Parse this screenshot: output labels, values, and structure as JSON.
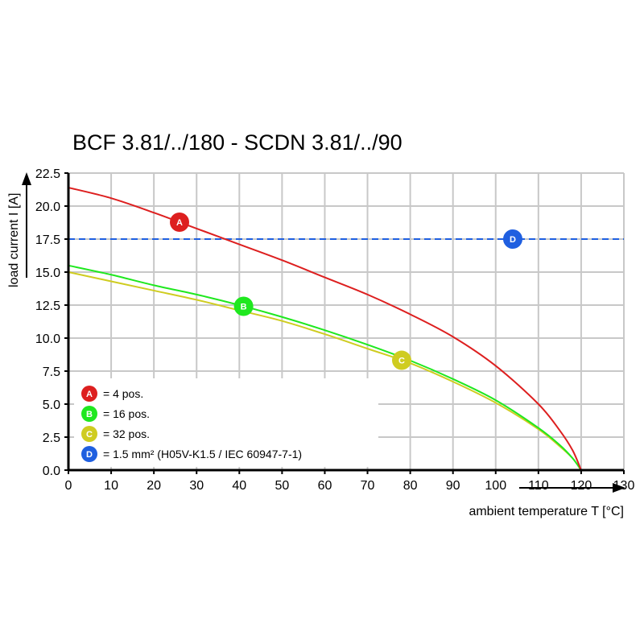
{
  "chart_data": {
    "type": "line",
    "title": "BCF 3.81/../180 - SCDN 3.81/../90",
    "xlabel": "ambient temperature T [°C]",
    "ylabel": "load current I [A]",
    "xlim": [
      0,
      130
    ],
    "ylim": [
      0,
      22.5
    ],
    "x_ticks": [
      "0",
      "10",
      "20",
      "30",
      "40",
      "50",
      "60",
      "70",
      "80",
      "90",
      "100",
      "110",
      "120",
      "130"
    ],
    "y_ticks": [
      "0.0",
      "2.5",
      "5.0",
      "7.5",
      "10.0",
      "12.5",
      "15.0",
      "17.5",
      "20.0",
      "22.5"
    ],
    "grid": true,
    "legend_position": "bottom-left",
    "series": [
      {
        "badge": "A",
        "legend": "= 4 pos.",
        "color": "#dd1f1f",
        "x": [
          0,
          10,
          20,
          30,
          40,
          50,
          60,
          70,
          80,
          90,
          100,
          110,
          115,
          118,
          120
        ],
        "y": [
          21.4,
          20.6,
          19.5,
          18.3,
          17.1,
          15.9,
          14.6,
          13.3,
          11.8,
          10.1,
          7.9,
          5.0,
          3.0,
          1.5,
          0.0
        ],
        "marker_x": 26
      },
      {
        "badge": "B",
        "legend": "= 16 pos.",
        "color": "#1fe81f",
        "x": [
          0,
          10,
          20,
          30,
          40,
          50,
          60,
          70,
          80,
          90,
          100,
          110,
          115,
          118,
          120
        ],
        "y": [
          15.5,
          14.8,
          14.0,
          13.3,
          12.5,
          11.6,
          10.6,
          9.5,
          8.3,
          6.9,
          5.3,
          3.2,
          1.9,
          0.9,
          0.0
        ],
        "marker_x": 41
      },
      {
        "badge": "C",
        "legend": "= 32 pos.",
        "color": "#cfcc20",
        "x": [
          0,
          10,
          20,
          30,
          40,
          50,
          60,
          70,
          80,
          90,
          100,
          110,
          115,
          118,
          120
        ],
        "y": [
          15.0,
          14.3,
          13.6,
          12.9,
          12.1,
          11.3,
          10.3,
          9.2,
          8.1,
          6.7,
          5.1,
          3.1,
          1.8,
          0.9,
          0.0
        ],
        "marker_x": 78
      }
    ],
    "reference_line": {
      "badge": "D",
      "legend": "= 1.5 mm² (H05V-K1.5 / IEC 60947-7-1)",
      "color": "#1f5fe0",
      "y": 17.5,
      "marker_x": 104
    }
  }
}
